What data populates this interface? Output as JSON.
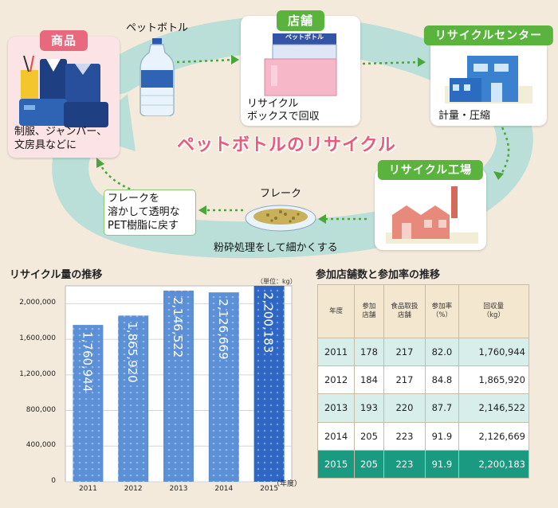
{
  "colors": {
    "background": "#f3eadc",
    "cycle_band": "#b9dfd8",
    "pink": "#e8687e",
    "green": "#59b33c",
    "bar": "#5b8fd6",
    "bar_highlight": "#2e66c4",
    "table_highlight": "#1a9a80"
  },
  "diagram": {
    "title": "ペットボトルのリサイクル",
    "products": {
      "title": "商品",
      "caption_1": "制服、ジャンパー、",
      "caption_2": "文房具などに"
    },
    "bottle": {
      "label": "ペットボトル"
    },
    "store": {
      "title": "店舗",
      "box_label": "ペットボトル",
      "caption_1": "リサイクル",
      "caption_2": "ボックスで回収"
    },
    "center": {
      "title": "リサイクルセンター",
      "caption": "計量・圧縮"
    },
    "factory": {
      "title": "リサイクル工場"
    },
    "flake": {
      "label": "フレーク",
      "caption": "粉砕処理をして細かくする"
    },
    "resin": {
      "line_1": "フレークを",
      "line_2": "溶かして透明な",
      "line_3": "PET樹脂に戻す"
    }
  },
  "chart_data": {
    "type": "bar",
    "title": "リサイクル量の推移",
    "unit": "（単位：kg）",
    "x_suffix": "（年度）",
    "categories": [
      "2011",
      "2012",
      "2013",
      "2014",
      "2015"
    ],
    "values": [
      1760944,
      1865920,
      2146522,
      2126669,
      2200183
    ],
    "value_labels": [
      "1,760,944",
      "1,865,920",
      "2,146,522",
      "2,126,669",
      "2,200,183"
    ],
    "ylim": [
      0,
      2200000
    ],
    "yticks": [
      "0",
      "400,000",
      "800,000",
      "1,200,000",
      "1,600,000",
      "2,000,000"
    ],
    "ytick_values": [
      0,
      400000,
      800000,
      1200000,
      1600000,
      2000000
    ],
    "highlight_index": 4
  },
  "table": {
    "title": "参加店舗数と参加率の推移",
    "headers": [
      [
        "年度"
      ],
      [
        "参加",
        "店舗"
      ],
      [
        "食品取扱",
        "店舗"
      ],
      [
        "参加率",
        "（%）"
      ],
      [
        "回収量",
        "（kg）"
      ]
    ],
    "rows": [
      [
        "2011",
        "178",
        "217",
        "82.0",
        "1,760,944"
      ],
      [
        "2012",
        "184",
        "217",
        "84.8",
        "1,865,920"
      ],
      [
        "2013",
        "193",
        "220",
        "87.7",
        "2,146,522"
      ],
      [
        "2014",
        "205",
        "223",
        "91.9",
        "2,126,669"
      ],
      [
        "2015",
        "205",
        "223",
        "91.9",
        "2,200,183"
      ]
    ],
    "highlight_row": 4
  }
}
